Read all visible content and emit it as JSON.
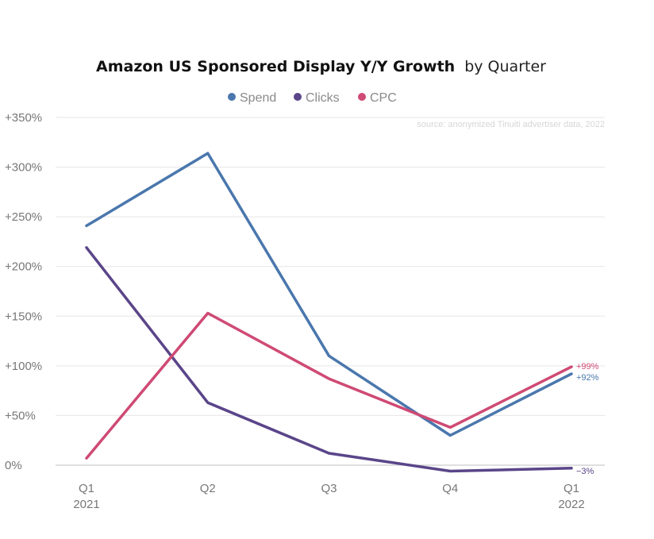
{
  "chart_data": {
    "type": "line",
    "title": "Amazon US Sponsored Display Y/Y Growth",
    "subtitle": "by Quarter",
    "source": "source: anonymized Tinuiti advertiser data, 2022",
    "categories": [
      "Q1 2021",
      "Q2",
      "Q3",
      "Q4",
      "Q1 2022"
    ],
    "x_tick_labels": [
      {
        "line1": "Q1",
        "line2": "2021"
      },
      {
        "line1": "Q2",
        "line2": ""
      },
      {
        "line1": "Q3",
        "line2": ""
      },
      {
        "line1": "Q4",
        "line2": ""
      },
      {
        "line1": "Q1",
        "line2": "2022"
      }
    ],
    "y_ticks": [
      0,
      50,
      100,
      150,
      200,
      250,
      300,
      350
    ],
    "y_tick_labels": [
      "0%",
      "+50%",
      "+100%",
      "+150%",
      "+200%",
      "+250%",
      "+300%",
      "+350%"
    ],
    "ylim": [
      0,
      350
    ],
    "ylabel": "",
    "xlabel": "",
    "grid": true,
    "legend_position": "top-center",
    "series": [
      {
        "name": "Spend",
        "color": "#4a77ad",
        "values": [
          241,
          314,
          110,
          30,
          92
        ],
        "end_label": "+92%"
      },
      {
        "name": "Clicks",
        "color": "#5a4589",
        "values": [
          219,
          63,
          12,
          -6,
          -3
        ],
        "end_label": "−3%"
      },
      {
        "name": "CPC",
        "color": "#cf4a74",
        "values": [
          7,
          153,
          87,
          38,
          99
        ],
        "end_label": "+99%"
      }
    ]
  }
}
